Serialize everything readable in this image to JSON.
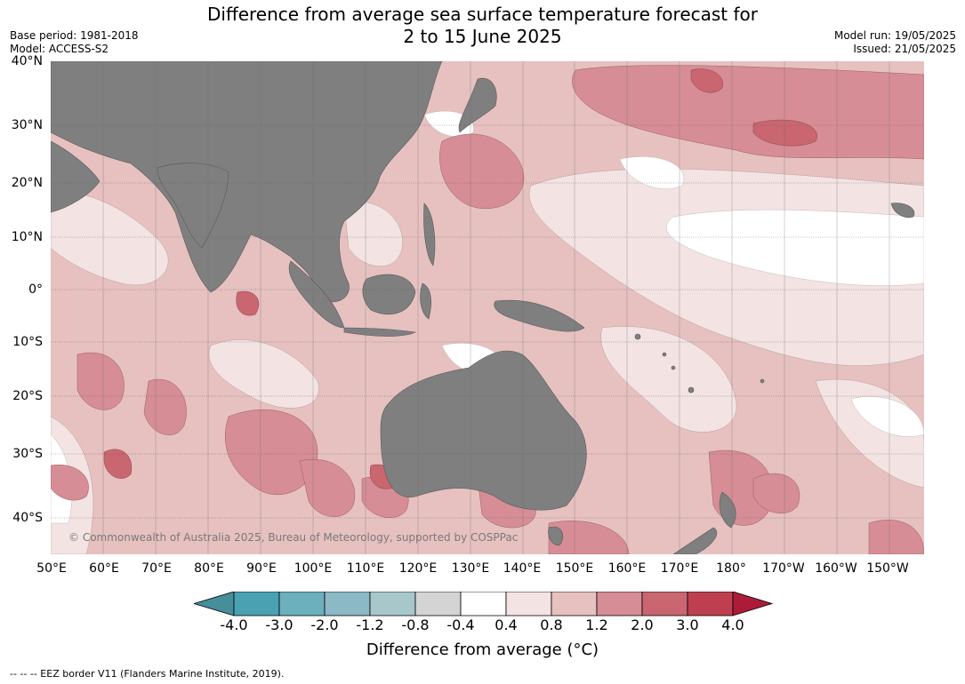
{
  "header": {
    "title_line1": "Difference from average sea surface temperature forecast for",
    "title_line2": "2 to 15 June 2025",
    "base_period": "Base period: 1981-2018",
    "model": "Model: ACCESS-S2",
    "model_run": "Model run: 19/05/2025",
    "issued": "Issued: 21/05/2025"
  },
  "map": {
    "latitude_labels": [
      "40°N",
      "30°N",
      "20°N",
      "10°N",
      "0°",
      "10°S",
      "20°S",
      "30°S",
      "40°S"
    ],
    "longitude_labels": [
      "50°E",
      "60°E",
      "70°E",
      "80°E",
      "90°E",
      "100°E",
      "110°E",
      "120°E",
      "130°E",
      "140°E",
      "150°E",
      "160°E",
      "170°E",
      "180°",
      "170°W",
      "160°W",
      "150°W"
    ],
    "copyright": "© Commonwealth of Australia 2025, Bureau of Meteorology, supported by COSPPac",
    "land_color": "#7f7f7f"
  },
  "colorbar": {
    "title": "Difference from average (°C)",
    "tick_labels": [
      "-4.0",
      "-3.0",
      "-2.0",
      "-1.2",
      "-0.8",
      "-0.4",
      "0.4",
      "0.8",
      "1.2",
      "2.0",
      "3.0",
      "4.0"
    ],
    "colors": [
      "#468f9a",
      "#4aa1b1",
      "#6cafbd",
      "#8bb9c6",
      "#a8c7cb",
      "#d4d4d4",
      "#ffffff",
      "#f3e3e3",
      "#e6c1c0",
      "#d68d95",
      "#c96670",
      "#be4050",
      "#ac1c38"
    ]
  },
  "footer": {
    "legend_note": "--  --  -- EEZ border V11 (Flanders Marine Institute, 2019)."
  }
}
